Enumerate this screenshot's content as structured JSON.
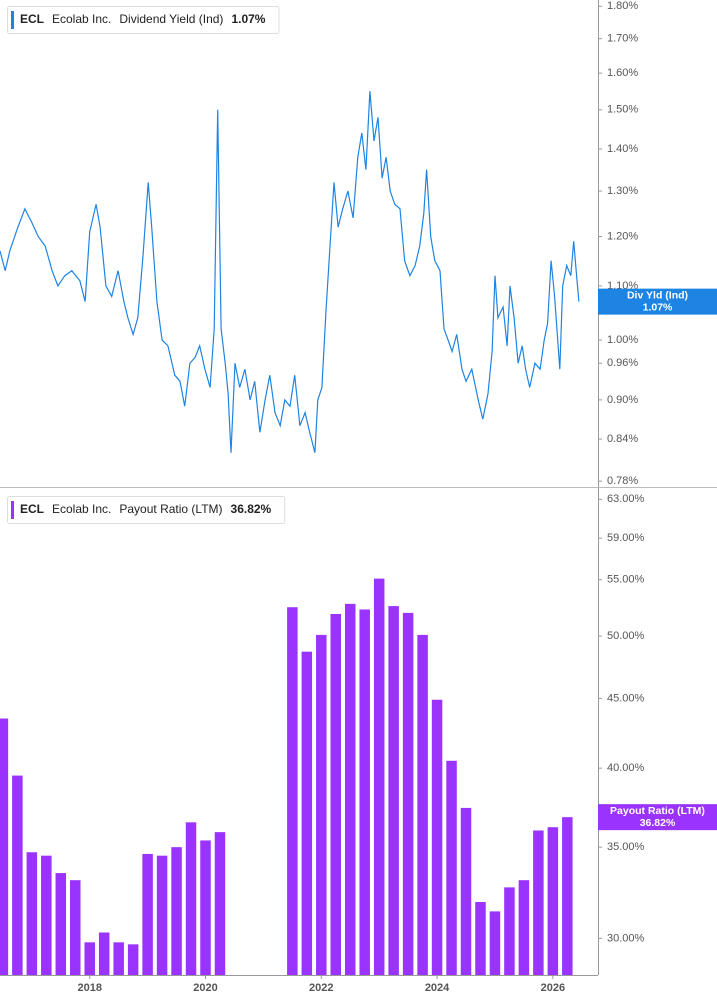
{
  "chart_data": [
    {
      "type": "line",
      "ticker": "ECL",
      "company": "Ecolab Inc.",
      "metric": "Dividend Yield (Ind)",
      "last_label": "1.07%",
      "tag_label": "Div Yld (Ind)",
      "color": "#1e84e4",
      "log": true,
      "xlim": [
        2016.45,
        2026.78
      ],
      "ylim": [
        0.772,
        1.82
      ],
      "yticks": [
        {
          "value": 1.8,
          "label": "1.80%"
        },
        {
          "value": 1.7,
          "label": "1.70%"
        },
        {
          "value": 1.6,
          "label": "1.60%"
        },
        {
          "value": 1.5,
          "label": "1.50%"
        },
        {
          "value": 1.4,
          "label": "1.40%"
        },
        {
          "value": 1.3,
          "label": "1.30%"
        },
        {
          "value": 1.2,
          "label": "1.20%"
        },
        {
          "value": 1.1,
          "label": "1.10%"
        },
        {
          "value": 1.0,
          "label": "1.00%"
        },
        {
          "value": 0.96,
          "label": "0.96%"
        },
        {
          "value": 0.9,
          "label": "0.90%"
        },
        {
          "value": 0.84,
          "label": "0.84%"
        },
        {
          "value": 0.78,
          "label": "0.78%"
        }
      ],
      "x": [
        2016.45,
        2016.54,
        2016.62,
        2016.76,
        2016.88,
        2017.0,
        2017.11,
        2017.23,
        2017.35,
        2017.45,
        2017.57,
        2017.69,
        2017.83,
        2017.92,
        2018.0,
        2018.11,
        2018.18,
        2018.28,
        2018.38,
        2018.49,
        2018.59,
        2018.66,
        2018.75,
        2018.83,
        2018.92,
        2019.01,
        2019.07,
        2019.16,
        2019.25,
        2019.35,
        2019.47,
        2019.56,
        2019.64,
        2019.73,
        2019.82,
        2019.9,
        2019.99,
        2020.08,
        2020.15,
        2020.21,
        2020.27,
        2020.34,
        2020.39,
        2020.44,
        2020.51,
        2020.59,
        2020.68,
        2020.77,
        2020.85,
        2020.94,
        2021.03,
        2021.11,
        2021.2,
        2021.29,
        2021.37,
        2021.46,
        2021.54,
        2021.63,
        2021.72,
        2021.8,
        2021.89,
        2021.94,
        2022.01,
        2022.08,
        2022.15,
        2022.22,
        2022.29,
        2022.37,
        2022.46,
        2022.55,
        2022.63,
        2022.7,
        2022.77,
        2022.84,
        2022.91,
        2022.98,
        2023.05,
        2023.12,
        2023.19,
        2023.27,
        2023.36,
        2023.44,
        2023.53,
        2023.62,
        2023.7,
        2023.77,
        2023.82,
        2023.89,
        2023.96,
        2024.05,
        2024.12,
        2024.19,
        2024.26,
        2024.34,
        2024.43,
        2024.5,
        2024.6,
        2024.71,
        2024.79,
        2024.88,
        2024.95,
        2025.0,
        2025.05,
        2025.14,
        2025.21,
        2025.26,
        2025.33,
        2025.4,
        2025.47,
        2025.53,
        2025.6,
        2025.69,
        2025.78,
        2025.85,
        2025.91,
        2025.97,
        2026.03,
        2026.12,
        2026.17,
        2026.24,
        2026.31,
        2026.36,
        2026.41,
        2026.45
      ],
      "values": [
        1.17,
        1.13,
        1.17,
        1.22,
        1.26,
        1.23,
        1.2,
        1.18,
        1.13,
        1.1,
        1.12,
        1.13,
        1.11,
        1.07,
        1.21,
        1.27,
        1.22,
        1.1,
        1.08,
        1.13,
        1.07,
        1.04,
        1.01,
        1.04,
        1.16,
        1.32,
        1.22,
        1.07,
        1.0,
        0.99,
        0.94,
        0.93,
        0.89,
        0.96,
        0.97,
        0.99,
        0.95,
        0.92,
        1.02,
        1.5,
        1.02,
        0.96,
        0.91,
        0.82,
        0.96,
        0.92,
        0.95,
        0.9,
        0.93,
        0.85,
        0.9,
        0.94,
        0.88,
        0.86,
        0.9,
        0.89,
        0.94,
        0.86,
        0.88,
        0.85,
        0.82,
        0.9,
        0.92,
        1.05,
        1.18,
        1.32,
        1.22,
        1.26,
        1.3,
        1.24,
        1.38,
        1.44,
        1.35,
        1.55,
        1.42,
        1.48,
        1.33,
        1.38,
        1.3,
        1.27,
        1.26,
        1.15,
        1.12,
        1.14,
        1.18,
        1.25,
        1.35,
        1.2,
        1.15,
        1.13,
        1.02,
        1.0,
        0.98,
        1.01,
        0.95,
        0.93,
        0.95,
        0.9,
        0.87,
        0.91,
        0.98,
        1.12,
        1.04,
        1.06,
        0.99,
        1.1,
        1.04,
        0.96,
        0.99,
        0.95,
        0.92,
        0.96,
        0.95,
        1.0,
        1.03,
        1.15,
        1.08,
        0.95,
        1.1,
        1.14,
        1.12,
        1.19,
        1.12,
        1.07
      ]
    },
    {
      "type": "bar",
      "ticker": "ECL",
      "company": "Ecolab Inc.",
      "metric": "Payout Ratio (LTM)",
      "last_label": "36.82%",
      "tag_label": "Payout Ratio (LTM)",
      "color": "#9b33ff",
      "log": true,
      "xlim": [
        2016.45,
        2026.78
      ],
      "xticks": [
        2018,
        2020,
        2022,
        2024,
        2026
      ],
      "ylim": [
        28.2,
        64
      ],
      "yticks": [
        {
          "value": 63,
          "label": "63.00%"
        },
        {
          "value": 59,
          "label": "59.00%"
        },
        {
          "value": 55,
          "label": "55.00%"
        },
        {
          "value": 50,
          "label": "50.00%"
        },
        {
          "value": 45,
          "label": "45.00%"
        },
        {
          "value": 40,
          "label": "40.00%"
        },
        {
          "value": 35,
          "label": "35.00%"
        },
        {
          "value": 30,
          "label": "30.00%"
        }
      ],
      "x": [
        2016.5,
        2016.75,
        2017.0,
        2017.25,
        2017.5,
        2017.75,
        2018.0,
        2018.25,
        2018.5,
        2018.75,
        2019.0,
        2019.25,
        2019.5,
        2019.75,
        2020.0,
        2020.25,
        2021.5,
        2021.75,
        2022.0,
        2022.25,
        2022.5,
        2022.75,
        2023.0,
        2023.25,
        2023.5,
        2023.75,
        2024.0,
        2024.25,
        2024.5,
        2024.75,
        2025.0,
        2025.25,
        2025.5,
        2025.75,
        2026.0,
        2026.25
      ],
      "values": [
        43.5,
        39.5,
        34.7,
        34.5,
        33.5,
        33.1,
        29.8,
        30.3,
        29.8,
        29.7,
        34.6,
        34.5,
        35.0,
        36.5,
        35.4,
        35.9,
        52.5,
        48.7,
        50.1,
        51.9,
        52.8,
        52.3,
        55.1,
        52.6,
        52.0,
        50.1,
        44.9,
        40.5,
        37.4,
        31.9,
        31.4,
        32.7,
        33.1,
        36.0,
        36.2,
        36.82
      ]
    }
  ]
}
